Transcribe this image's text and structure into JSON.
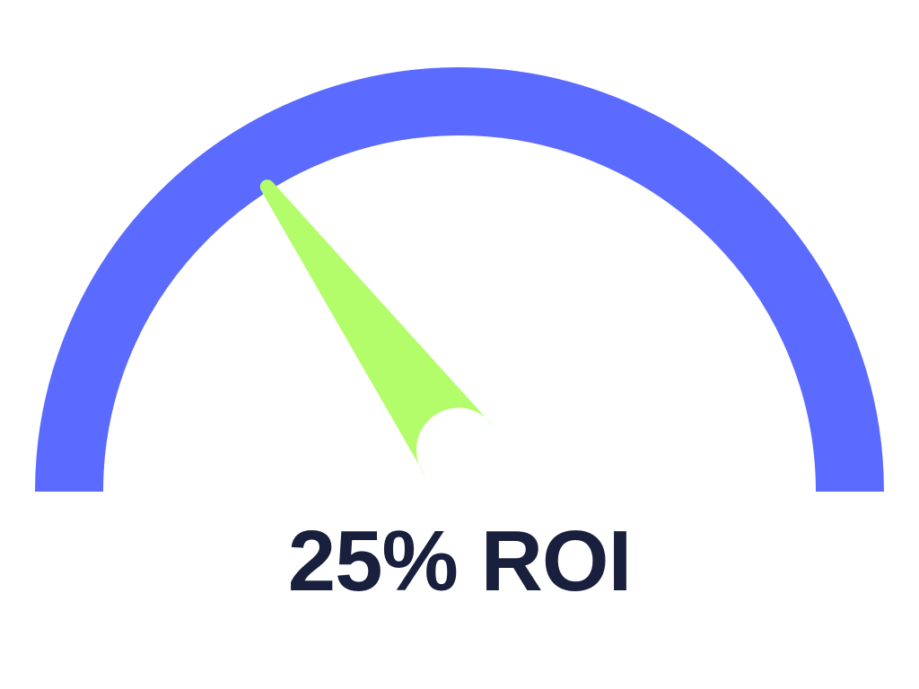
{
  "gauge": {
    "label": "25% ROI",
    "needle_level": 0.3,
    "colors": {
      "arc": "#5b6bff",
      "needle": "#b3fd6b",
      "text": "#19203d",
      "background": "#ffffff"
    }
  }
}
